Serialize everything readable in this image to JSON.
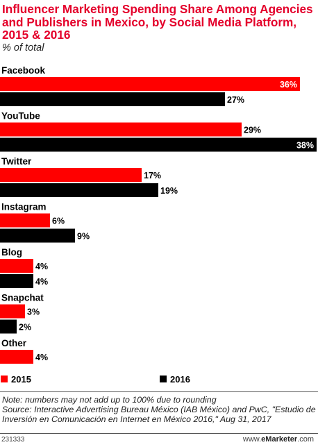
{
  "header": {
    "title": "Influencer Marketing Spending Share Among Agencies and Publishers in Mexico, by Social Media Platform, 2015 & 2016",
    "subtitle": "% of total"
  },
  "chart_data": {
    "type": "bar",
    "orientation": "horizontal",
    "title": "Influencer Marketing Spending Share Among Agencies and Publishers in Mexico, by Social Media Platform, 2015 & 2016",
    "subtitle": "% of total",
    "categories": [
      "Facebook",
      "YouTube",
      "Twitter",
      "Instagram",
      "Blog",
      "Snapchat",
      "Other"
    ],
    "series": [
      {
        "name": "2015",
        "color": "#ff0000",
        "values": [
          36,
          29,
          17,
          6,
          4,
          3,
          4
        ]
      },
      {
        "name": "2016",
        "color": "#000000",
        "values": [
          27,
          38,
          19,
          9,
          4,
          2,
          null
        ]
      }
    ],
    "value_suffix": "%",
    "xlim": [
      0,
      38
    ],
    "grid": false,
    "legend_position": "bottom"
  },
  "legend": {
    "label_2015": "2015",
    "label_2016": "2016"
  },
  "footer": {
    "note": "Note: numbers may not add up to 100% due to rounding",
    "source": "Source: Interactive Advertising Bureau México (IAB México) and PwC, \"Estudio de Inversión en Comunicación en Internet en México 2016,\" Aug 31, 2017",
    "chart_id": "231333",
    "brand_prefix": "www.",
    "brand_name": "eMarketer",
    "brand_suffix": ".com"
  }
}
